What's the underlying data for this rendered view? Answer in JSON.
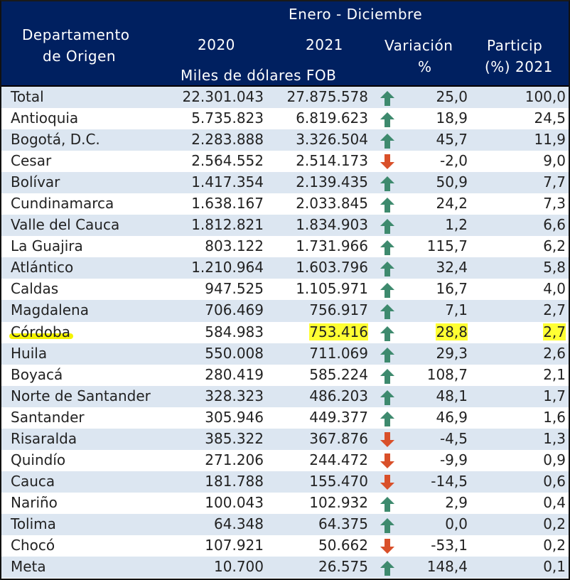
{
  "header": {
    "period": "Enero - Diciembre",
    "col_department": [
      "Departamento",
      "de Origen"
    ],
    "col_2020": "2020",
    "col_2021": "2021",
    "units": "Miles de dólares FOB",
    "col_variation": [
      "Variación",
      "%"
    ],
    "col_share": [
      "Particip",
      "(%) 2021"
    ]
  },
  "colors": {
    "header_bg": "#002060",
    "alt_row_bg": "#dce6f1",
    "up_arrow": "#3e8a6e",
    "down_arrow": "#d9502a",
    "highlight": "#ffff33"
  },
  "rows": [
    {
      "name": "Total",
      "v2020": "22.301.043",
      "v2021": "27.875.578",
      "trend": "up",
      "var": "25,0",
      "share": "100,0"
    },
    {
      "name": "Antioquia",
      "v2020": "5.735.823",
      "v2021": "6.819.623",
      "trend": "up",
      "var": "18,9",
      "share": "24,5"
    },
    {
      "name": "Bogotá, D.C.",
      "v2020": "2.283.888",
      "v2021": "3.326.504",
      "trend": "up",
      "var": "45,7",
      "share": "11,9"
    },
    {
      "name": "Cesar",
      "v2020": "2.564.552",
      "v2021": "2.514.173",
      "trend": "down",
      "var": "-2,0",
      "share": "9,0"
    },
    {
      "name": "Bolívar",
      "v2020": "1.417.354",
      "v2021": "2.139.435",
      "trend": "up",
      "var": "50,9",
      "share": "7,7"
    },
    {
      "name": "Cundinamarca",
      "v2020": "1.638.167",
      "v2021": "2.033.845",
      "trend": "up",
      "var": "24,2",
      "share": "7,3"
    },
    {
      "name": "Valle del Cauca",
      "v2020": "1.812.821",
      "v2021": "1.834.903",
      "trend": "up",
      "var": "1,2",
      "share": "6,6"
    },
    {
      "name": "La Guajira",
      "v2020": "803.122",
      "v2021": "1.731.966",
      "trend": "up",
      "var": "115,7",
      "share": "6,2"
    },
    {
      "name": "Atlántico",
      "v2020": "1.210.964",
      "v2021": "1.603.796",
      "trend": "up",
      "var": "32,4",
      "share": "5,8"
    },
    {
      "name": "Caldas",
      "v2020": "947.525",
      "v2021": "1.105.971",
      "trend": "up",
      "var": "16,7",
      "share": "4,0"
    },
    {
      "name": "Magdalena",
      "v2020": "706.469",
      "v2021": "756.917",
      "trend": "up",
      "var": "7,1",
      "share": "2,7"
    },
    {
      "name": "Córdoba",
      "v2020": "584.983",
      "v2021": "753.416",
      "trend": "up",
      "var": "28,8",
      "share": "2,7",
      "highlighted": true
    },
    {
      "name": "Huila",
      "v2020": "550.008",
      "v2021": "711.069",
      "trend": "up",
      "var": "29,3",
      "share": "2,6"
    },
    {
      "name": "Boyacá",
      "v2020": "280.419",
      "v2021": "585.224",
      "trend": "up",
      "var": "108,7",
      "share": "2,1"
    },
    {
      "name": "Norte de Santander",
      "v2020": "328.323",
      "v2021": "486.203",
      "trend": "up",
      "var": "48,1",
      "share": "1,7"
    },
    {
      "name": "Santander",
      "v2020": "305.946",
      "v2021": "449.377",
      "trend": "up",
      "var": "46,9",
      "share": "1,6"
    },
    {
      "name": "Risaralda",
      "v2020": "385.322",
      "v2021": "367.876",
      "trend": "down",
      "var": "-4,5",
      "share": "1,3"
    },
    {
      "name": "Quindío",
      "v2020": "271.206",
      "v2021": "244.472",
      "trend": "down",
      "var": "-9,9",
      "share": "0,9"
    },
    {
      "name": "Cauca",
      "v2020": "181.788",
      "v2021": "155.470",
      "trend": "down",
      "var": "-14,5",
      "share": "0,6"
    },
    {
      "name": "Nariño",
      "v2020": "100.043",
      "v2021": "102.932",
      "trend": "up",
      "var": "2,9",
      "share": "0,4"
    },
    {
      "name": "Tolima",
      "v2020": "64.348",
      "v2021": "64.375",
      "trend": "up",
      "var": "0,0",
      "share": "0,2"
    },
    {
      "name": "Chocó",
      "v2020": "107.921",
      "v2021": "50.662",
      "trend": "down",
      "var": "-53,1",
      "share": "0,2"
    },
    {
      "name": "Meta",
      "v2020": "10.700",
      "v2021": "26.575",
      "trend": "up",
      "var": "148,4",
      "share": "0,1"
    }
  ]
}
